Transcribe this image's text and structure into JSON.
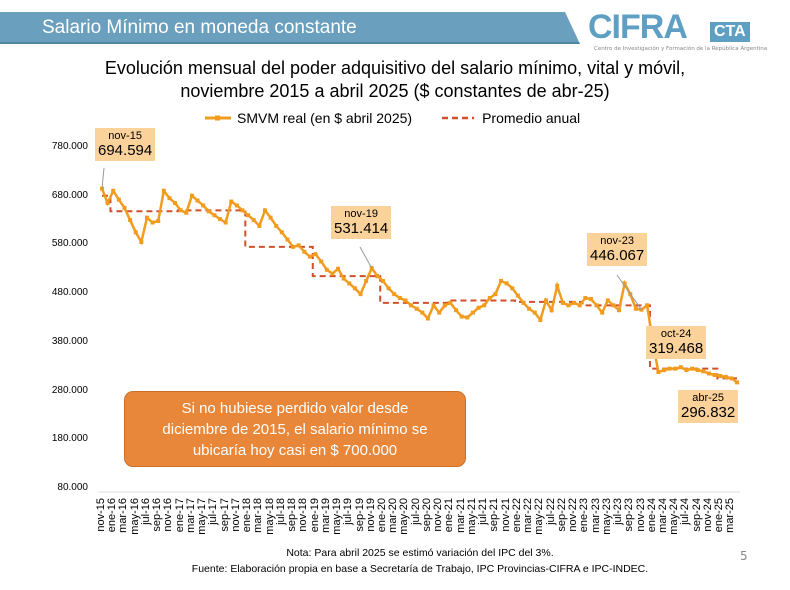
{
  "header": {
    "title": "Salario Mínimo en moneda constante",
    "logo_text": "CIFRA",
    "logo_cta": "CTA",
    "logo_subtitle": "Centro de Investigación y Formación de la República Argentina"
  },
  "chart_data": {
    "type": "line",
    "title_line1": "Evolución mensual del poder adquisitivo del salario mínimo, vital y móvil,",
    "title_line2": "noviembre 2015 a abril 2025 ($ constantes de abr-25)",
    "ylim": [
      80000,
      780000
    ],
    "yticks": [
      "780.000",
      "680.000",
      "580.000",
      "480.000",
      "380.000",
      "280.000",
      "180.000",
      "80.000"
    ],
    "ytick_values": [
      780000,
      680000,
      580000,
      480000,
      380000,
      280000,
      180000,
      80000
    ],
    "xtick_labels": [
      "nov-15",
      "ene-16",
      "mar-16",
      "may-16",
      "jul-16",
      "sep-16",
      "nov-16",
      "ene-17",
      "mar-17",
      "may-17",
      "jul-17",
      "sep-17",
      "nov-17",
      "ene-18",
      "mar-18",
      "may-18",
      "jul-18",
      "sep-18",
      "nov-18",
      "ene-19",
      "mar-19",
      "may-19",
      "jul-19",
      "sep-19",
      "nov-19",
      "ene-20",
      "mar-20",
      "may-20",
      "jul-20",
      "sep-20",
      "nov-20",
      "ene-21",
      "mar-21",
      "may-21",
      "jul-21",
      "sep-21",
      "nov-21",
      "ene-22",
      "mar-22",
      "may-22",
      "jul-22",
      "sep-22",
      "nov-22",
      "ene-23",
      "mar-23",
      "may-23",
      "jul-23",
      "sep-23",
      "nov-23",
      "ene-24",
      "mar-24",
      "may-24",
      "jul-24",
      "sep-24",
      "nov-24",
      "ene-25",
      "mar-25"
    ],
    "grid": false,
    "legend_position": "top",
    "series": [
      {
        "name": "SMVM real (en $ abril 2025)",
        "color": "#f29c1f",
        "start": "nov-15",
        "end": "abr-25",
        "values": [
          694594,
          665000,
          690000,
          672000,
          655000,
          630000,
          605000,
          585000,
          635000,
          625000,
          628000,
          690000,
          675000,
          665000,
          650000,
          645000,
          680000,
          670000,
          660000,
          648000,
          640000,
          632000,
          625000,
          668000,
          660000,
          650000,
          640000,
          630000,
          618000,
          650000,
          635000,
          618000,
          605000,
          590000,
          575000,
          578000,
          565000,
          555000,
          560000,
          545000,
          528000,
          520000,
          530000,
          510000,
          500000,
          490000,
          478000,
          505000,
          531414,
          515000,
          505000,
          490000,
          478000,
          470000,
          465000,
          455000,
          448000,
          440000,
          428000,
          455000,
          440000,
          455000,
          460000,
          445000,
          432000,
          430000,
          440000,
          450000,
          455000,
          470000,
          478000,
          505000,
          500000,
          490000,
          475000,
          460000,
          448000,
          440000,
          425000,
          465000,
          445000,
          495000,
          460000,
          455000,
          460000,
          455000,
          470000,
          468000,
          455000,
          440000,
          465000,
          455000,
          445000,
          500000,
          478000,
          448000,
          446067,
          455000,
          380000,
          318000,
          322000,
          325000,
          325000,
          328000,
          322000,
          325000,
          322000,
          319468,
          315000,
          312000,
          310000,
          308000,
          305000,
          296832
        ]
      },
      {
        "name": "Promedio anual",
        "color": "#d0502a",
        "dashed": true,
        "years": [
          2015,
          2016,
          2017,
          2018,
          2019,
          2020,
          2021,
          2022,
          2023,
          2024,
          2025
        ],
        "values": [
          680000,
          648000,
          650000,
          575000,
          515000,
          460000,
          465000,
          462000,
          455000,
          325000,
          305000
        ]
      }
    ],
    "annotations": [
      {
        "month": "nov-15",
        "value": "694.594"
      },
      {
        "month": "nov-19",
        "value": "531.414"
      },
      {
        "month": "nov-23",
        "value": "446.067"
      },
      {
        "month": "oct-24",
        "value": "319.468"
      },
      {
        "month": "abr-25",
        "value": "296.832"
      }
    ],
    "callout": [
      "Si no hubiese perdido valor desde",
      "diciembre de 2015, el salario mínimo se",
      "ubicaría hoy casi en $ 700.000"
    ]
  },
  "notes": {
    "line1": "Nota: Para abril 2025 se estimó variación del IPC del 3%.",
    "line2": "Fuente: Elaboración propia en base a Secretaría de Trabajo, IPC Provincias-CIFRA e IPC-INDEC."
  },
  "page_number": "5"
}
